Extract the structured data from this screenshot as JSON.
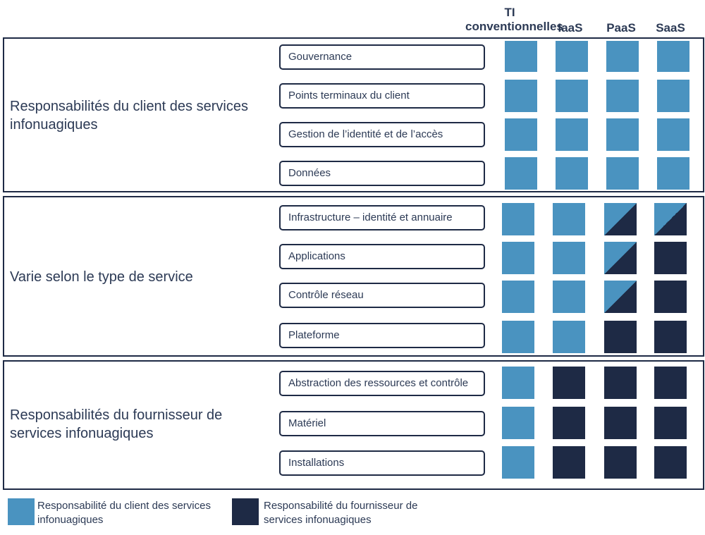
{
  "columns": [
    "TI conventionnelles",
    "IaaS",
    "PaaS",
    "SaaS"
  ],
  "sections": [
    {
      "title": "Responsabilités du client des services infonuagiques",
      "rows": [
        {
          "label": "Gouvernance",
          "cells": [
            "client",
            "client",
            "client",
            "client"
          ]
        },
        {
          "label": "Points terminaux du client",
          "cells": [
            "client",
            "client",
            "client",
            "client"
          ]
        },
        {
          "label": "Gestion de l’identité et de l’accès",
          "cells": [
            "client",
            "client",
            "client",
            "client"
          ]
        },
        {
          "label": "Données",
          "cells": [
            "client",
            "client",
            "client",
            "client"
          ]
        }
      ]
    },
    {
      "title": "Varie selon le type de service",
      "rows": [
        {
          "label": "Infrastructure – identité et annuaire",
          "cells": [
            "client",
            "client",
            "shared",
            "shared"
          ]
        },
        {
          "label": "Applications",
          "cells": [
            "client",
            "client",
            "shared",
            "provider"
          ]
        },
        {
          "label": "Contrôle réseau",
          "cells": [
            "client",
            "client",
            "shared",
            "provider"
          ]
        },
        {
          "label": "Plateforme",
          "cells": [
            "client",
            "client",
            "provider",
            "provider"
          ]
        }
      ]
    },
    {
      "title": "Responsabilités du fournisseur de services infonuagiques",
      "rows": [
        {
          "label": "Abstraction des ressources et contrôle",
          "cells": [
            "client",
            "provider",
            "provider",
            "provider"
          ]
        },
        {
          "label": "Matériel",
          "cells": [
            "client",
            "provider",
            "provider",
            "provider"
          ]
        },
        {
          "label": "Installations",
          "cells": [
            "client",
            "provider",
            "provider",
            "provider"
          ]
        }
      ]
    }
  ],
  "legend": {
    "client": "Responsabilité du client des services infonuagiques",
    "provider": "Responsabilité du fournisseur de services infonuagiques"
  },
  "colors": {
    "client": "#4a93c0",
    "provider": "#1e2a45"
  }
}
